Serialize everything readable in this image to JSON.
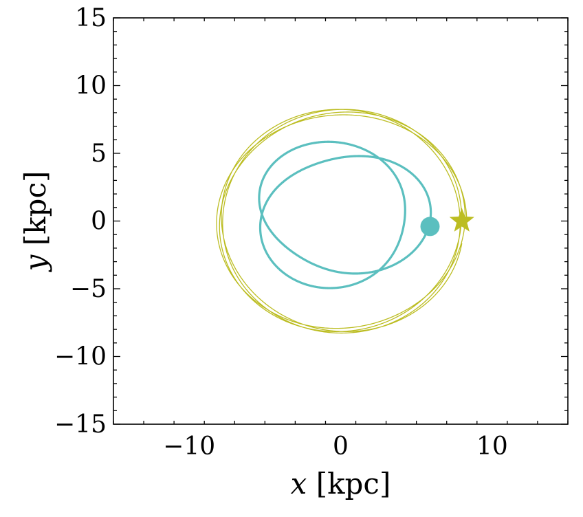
{
  "chart_data": {
    "type": "line",
    "xlabel_var": "x",
    "xlabel_unit": " [kpc]",
    "ylabel_var": "y",
    "ylabel_unit": " [kpc]",
    "xlim": [
      -15,
      15
    ],
    "ylim": [
      -15,
      15
    ],
    "xticks": [
      -10,
      0,
      10
    ],
    "yticks": [
      -15,
      -10,
      -5,
      0,
      5,
      10,
      15
    ],
    "xtick_labels": [
      "−10",
      "0",
      "10"
    ],
    "ytick_labels": [
      "−15",
      "−10",
      "−5",
      "0",
      "5",
      "10",
      "15"
    ],
    "grid": false,
    "series": [
      {
        "color": "#bcbd22",
        "marker": "star",
        "end_point": [
          8.0,
          0.0
        ],
        "orbit": "near-circular rosette, radius ~7.8–8.3 kpc"
      },
      {
        "color": "#5bbfbf",
        "marker": "circle",
        "end_point": [
          5.9,
          -0.4
        ],
        "orbit": "eccentric rosette, radius ~4–6 kpc"
      }
    ]
  }
}
